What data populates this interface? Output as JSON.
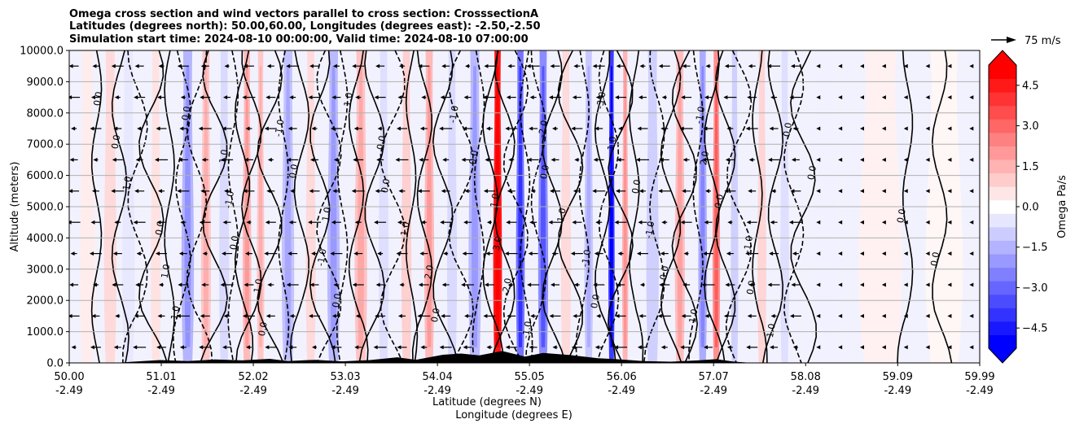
{
  "chart_data": {
    "type": "heatmap",
    "title_lines": [
      "Omega cross section and wind vectors parallel to cross section: CrosssectionA",
      "Latitudes (degrees north): 50.00,60.00, Longitudes (degrees east): -2.50,-2.50",
      "Simulation start time: 2024-08-10 00:00:00, Valid time: 2024-08-10 07:00:00"
    ],
    "xlabel_lines": [
      "Latitude (degrees N)",
      "Longitude (degrees E)"
    ],
    "ylabel": "Altitude (meters)",
    "x_ticks": [
      {
        "lat": "50.00",
        "lon": "-2.49"
      },
      {
        "lat": "51.01",
        "lon": "-2.49"
      },
      {
        "lat": "52.02",
        "lon": "-2.49"
      },
      {
        "lat": "53.03",
        "lon": "-2.49"
      },
      {
        "lat": "54.04",
        "lon": "-2.49"
      },
      {
        "lat": "55.05",
        "lon": "-2.49"
      },
      {
        "lat": "56.06",
        "lon": "-2.49"
      },
      {
        "lat": "57.07",
        "lon": "-2.49"
      },
      {
        "lat": "58.08",
        "lon": "-2.49"
      },
      {
        "lat": "59.09",
        "lon": "-2.49"
      },
      {
        "lat": "59.99",
        "lon": "-2.49"
      }
    ],
    "xlim": [
      50.0,
      59.99
    ],
    "ylim": [
      0,
      10000
    ],
    "y_ticks": [
      "0.0",
      "1000.0",
      "2000.0",
      "3000.0",
      "4000.0",
      "5000.0",
      "6000.0",
      "7000.0",
      "8000.0",
      "9000.0",
      "10000.0"
    ],
    "grid": true,
    "colorbar": {
      "label": "Omega Pa/s",
      "range": [
        -5.25,
        5.25
      ],
      "ticks": [
        "4.5",
        "3.0",
        "1.5",
        "0.0",
        "−1.5",
        "−3.0",
        "−4.5"
      ],
      "tick_values": [
        4.5,
        3.0,
        1.5,
        0.0,
        -1.5,
        -3.0,
        -4.5
      ],
      "colormap": "bwr",
      "extend": "both",
      "levels": 21
    },
    "quiver_key": {
      "label": "75 m/s",
      "speed": 75
    },
    "omega_bands": [
      {
        "lat": 50.2,
        "value": 0.4,
        "width": 0.12
      },
      {
        "lat": 50.45,
        "value": 0.8,
        "width": 0.1
      },
      {
        "lat": 50.65,
        "value": -0.5,
        "width": 0.1
      },
      {
        "lat": 50.95,
        "value": 0.6,
        "width": 0.08
      },
      {
        "lat": 51.3,
        "value": -1.6,
        "width": 0.1
      },
      {
        "lat": 51.5,
        "value": 1.2,
        "width": 0.08
      },
      {
        "lat": 51.7,
        "value": -0.8,
        "width": 0.08
      },
      {
        "lat": 51.95,
        "value": 1.5,
        "width": 0.07
      },
      {
        "lat": 52.1,
        "value": 1.2,
        "width": 0.06
      },
      {
        "lat": 52.4,
        "value": -1.3,
        "width": 0.1
      },
      {
        "lat": 52.65,
        "value": 0.8,
        "width": 0.08
      },
      {
        "lat": 52.9,
        "value": -1.5,
        "width": 0.1
      },
      {
        "lat": 53.2,
        "value": 1.3,
        "width": 0.1
      },
      {
        "lat": 53.45,
        "value": -0.7,
        "width": 0.08
      },
      {
        "lat": 53.7,
        "value": 1.0,
        "width": 0.08
      },
      {
        "lat": 53.95,
        "value": 1.5,
        "width": 0.08
      },
      {
        "lat": 54.2,
        "value": -0.8,
        "width": 0.08
      },
      {
        "lat": 54.45,
        "value": -1.5,
        "width": 0.1
      },
      {
        "lat": 54.7,
        "value": 5.0,
        "width": 0.07
      },
      {
        "lat": 54.95,
        "value": -3.0,
        "width": 0.07
      },
      {
        "lat": 55.2,
        "value": -2.5,
        "width": 0.08
      },
      {
        "lat": 55.45,
        "value": 0.8,
        "width": 0.08
      },
      {
        "lat": 55.7,
        "value": -1.2,
        "width": 0.07
      },
      {
        "lat": 55.95,
        "value": -4.2,
        "width": 0.05
      },
      {
        "lat": 56.1,
        "value": 1.6,
        "width": 0.05
      },
      {
        "lat": 56.4,
        "value": -1.0,
        "width": 0.1
      },
      {
        "lat": 56.7,
        "value": 1.4,
        "width": 0.08
      },
      {
        "lat": 56.95,
        "value": -1.8,
        "width": 0.07
      },
      {
        "lat": 57.1,
        "value": 2.4,
        "width": 0.06
      },
      {
        "lat": 57.3,
        "value": -1.0,
        "width": 0.06
      },
      {
        "lat": 57.6,
        "value": 0.9,
        "width": 0.07
      },
      {
        "lat": 57.85,
        "value": -0.7,
        "width": 0.07
      },
      {
        "lat": 58.3,
        "value": -0.3,
        "width": 0.2
      },
      {
        "lat": 58.9,
        "value": 0.3,
        "width": 0.35
      },
      {
        "lat": 59.6,
        "value": 0.2,
        "width": 0.3
      }
    ],
    "contour_lines": [
      {
        "lat": 50.3,
        "dashed": false,
        "label": "0.0"
      },
      {
        "lat": 50.55,
        "dashed": false,
        "label": "0.0"
      },
      {
        "lat": 50.75,
        "dashed": true,
        "label": "-1.0"
      },
      {
        "lat": 50.9,
        "dashed": false,
        "label": "0.0"
      },
      {
        "lat": 51.1,
        "dashed": false,
        "label": "1.0"
      },
      {
        "lat": 51.25,
        "dashed": true,
        "label": "-1.0"
      },
      {
        "lat": 51.4,
        "dashed": true,
        "label": "0.0"
      },
      {
        "lat": 51.6,
        "dashed": false,
        "label": "1.0"
      },
      {
        "lat": 51.8,
        "dashed": true,
        "label": "-1.0"
      },
      {
        "lat": 51.9,
        "dashed": false,
        "label": "0.0"
      },
      {
        "lat": 52.0,
        "dashed": false,
        "label": "1.0"
      },
      {
        "lat": 52.2,
        "dashed": false,
        "label": "0.0"
      },
      {
        "lat": 52.35,
        "dashed": true,
        "label": "-1.0"
      },
      {
        "lat": 52.55,
        "dashed": false,
        "label": "0.0"
      },
      {
        "lat": 52.75,
        "dashed": false,
        "label": "1.0"
      },
      {
        "lat": 52.85,
        "dashed": true,
        "label": "-1.0"
      },
      {
        "lat": 53.0,
        "dashed": true,
        "label": "0.0"
      },
      {
        "lat": 53.15,
        "dashed": false,
        "label": "1.0"
      },
      {
        "lat": 53.35,
        "dashed": false,
        "label": "0.0"
      },
      {
        "lat": 53.55,
        "dashed": true,
        "label": "0.0"
      },
      {
        "lat": 53.75,
        "dashed": false,
        "label": "1.0"
      },
      {
        "lat": 53.9,
        "dashed": false,
        "label": "2.0"
      },
      {
        "lat": 54.1,
        "dashed": false,
        "label": "0.0"
      },
      {
        "lat": 54.3,
        "dashed": true,
        "label": "-1.0"
      },
      {
        "lat": 54.5,
        "dashed": true,
        "label": "0.0"
      },
      {
        "lat": 54.62,
        "dashed": false,
        "label": "1.0"
      },
      {
        "lat": 54.78,
        "dashed": false,
        "label": "3.0"
      },
      {
        "lat": 54.9,
        "dashed": true,
        "label": "-2.0"
      },
      {
        "lat": 55.0,
        "dashed": true,
        "label": "-1.0"
      },
      {
        "lat": 55.15,
        "dashed": true,
        "label": "-2.0"
      },
      {
        "lat": 55.3,
        "dashed": false,
        "label": "0.0"
      },
      {
        "lat": 55.5,
        "dashed": false,
        "label": "1.0"
      },
      {
        "lat": 55.65,
        "dashed": true,
        "label": "-1.0"
      },
      {
        "lat": 55.85,
        "dashed": false,
        "label": "0.0"
      },
      {
        "lat": 55.92,
        "dashed": true,
        "label": "-3.0"
      },
      {
        "lat": 56.05,
        "dashed": false,
        "label": "1.0"
      },
      {
        "lat": 56.2,
        "dashed": false,
        "label": "0.0"
      },
      {
        "lat": 56.45,
        "dashed": true,
        "label": "-1.0"
      },
      {
        "lat": 56.6,
        "dashed": false,
        "label": "0.0"
      },
      {
        "lat": 56.75,
        "dashed": false,
        "label": "1.0"
      },
      {
        "lat": 56.9,
        "dashed": true,
        "label": "-1.0"
      },
      {
        "lat": 57.05,
        "dashed": false,
        "label": "2.0"
      },
      {
        "lat": 57.2,
        "dashed": false,
        "label": "0.0"
      },
      {
        "lat": 57.35,
        "dashed": true,
        "label": "-1.0"
      },
      {
        "lat": 57.55,
        "dashed": false,
        "label": "0.0"
      },
      {
        "lat": 57.75,
        "dashed": false,
        "label": "1.0"
      },
      {
        "lat": 57.95,
        "dashed": true,
        "label": "0.0"
      },
      {
        "lat": 58.05,
        "dashed": false,
        "label": "0.0"
      },
      {
        "lat": 59.2,
        "dashed": false,
        "label": "0.0"
      },
      {
        "lat": 59.55,
        "dashed": false,
        "label": "0.0"
      }
    ],
    "terrain": [
      {
        "lat": 50.0,
        "alt": 0
      },
      {
        "lat": 50.5,
        "alt": 0
      },
      {
        "lat": 50.7,
        "alt": 40
      },
      {
        "lat": 51.0,
        "alt": 90
      },
      {
        "lat": 51.3,
        "alt": 60
      },
      {
        "lat": 51.6,
        "alt": 110
      },
      {
        "lat": 51.9,
        "alt": 80
      },
      {
        "lat": 52.2,
        "alt": 130
      },
      {
        "lat": 52.4,
        "alt": 60
      },
      {
        "lat": 52.7,
        "alt": 100
      },
      {
        "lat": 53.0,
        "alt": 50
      },
      {
        "lat": 53.3,
        "alt": 90
      },
      {
        "lat": 53.6,
        "alt": 180
      },
      {
        "lat": 53.8,
        "alt": 100
      },
      {
        "lat": 54.1,
        "alt": 260
      },
      {
        "lat": 54.3,
        "alt": 300
      },
      {
        "lat": 54.5,
        "alt": 240
      },
      {
        "lat": 54.75,
        "alt": 380
      },
      {
        "lat": 55.0,
        "alt": 200
      },
      {
        "lat": 55.2,
        "alt": 320
      },
      {
        "lat": 55.5,
        "alt": 250
      },
      {
        "lat": 55.8,
        "alt": 150
      },
      {
        "lat": 56.0,
        "alt": 120
      },
      {
        "lat": 56.3,
        "alt": 60
      },
      {
        "lat": 56.6,
        "alt": 40
      },
      {
        "lat": 56.9,
        "alt": 80
      },
      {
        "lat": 57.1,
        "alt": 120
      },
      {
        "lat": 57.3,
        "alt": 40
      },
      {
        "lat": 57.5,
        "alt": 0
      },
      {
        "lat": 59.99,
        "alt": 0
      }
    ],
    "wind_vector_rows_alt": [
      500,
      1500,
      2500,
      3500,
      4500,
      5500,
      6500,
      7500,
      8500,
      9500
    ],
    "wind_vector_spacing_deg": 0.24
  }
}
